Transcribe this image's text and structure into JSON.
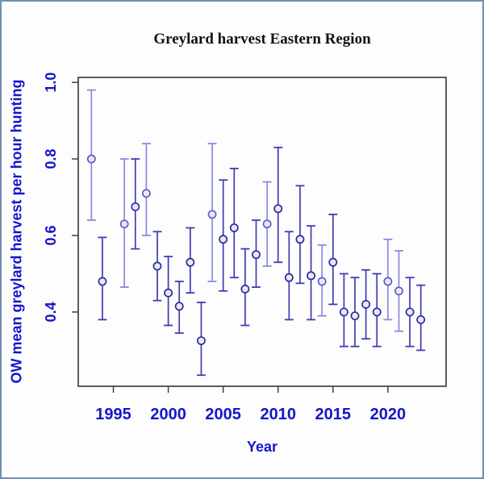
{
  "figure": {
    "border_color": "#6e8fb3",
    "background": "#fdfdfe"
  },
  "chart_data": {
    "type": "scatter",
    "subtype": "means-with-error-bars",
    "title": "Greylard harvest Eastern Region",
    "xlabel": "Year",
    "ylabel": "OW mean greylard harvest per hour hunting",
    "title_color": "#111111",
    "axis_text_color": "#1515cc",
    "frame_color": "#3f3f3f",
    "grid": false,
    "legend_position": "none",
    "xlim": [
      1991.8,
      2025.3
    ],
    "ylim": [
      0.206,
      1.013
    ],
    "x_ticks": [
      {
        "value": 1995,
        "label": "1995"
      },
      {
        "value": 2000,
        "label": "2000"
      },
      {
        "value": 2005,
        "label": "2005"
      },
      {
        "value": 2010,
        "label": "2010"
      },
      {
        "value": 2015,
        "label": "2015"
      },
      {
        "value": 2020,
        "label": "2020"
      }
    ],
    "y_ticks": [
      {
        "value": 0.4,
        "label": "0.4"
      },
      {
        "value": 0.6,
        "label": "0.6"
      },
      {
        "value": 0.8,
        "label": "0.8"
      },
      {
        "value": 1.0,
        "label": "1.0"
      }
    ],
    "marker": "open-circle",
    "error_bar_caps": true,
    "point_colors": {
      "light": "#8b89de",
      "dark": "#3d3db2"
    },
    "marker_ring_colors": {
      "light": "#5f5cc8",
      "dark": "#2c2c9a"
    },
    "marker_fill": "#e9e9f7",
    "series": [
      {
        "name": "OW mean greylard harvest per hour hunting",
        "points": [
          {
            "year": 1993,
            "mean": 0.8,
            "lo": 0.64,
            "hi": 0.98,
            "shade": "light"
          },
          {
            "year": 1994,
            "mean": 0.48,
            "lo": 0.38,
            "hi": 0.595,
            "shade": "dark"
          },
          {
            "year": 1996,
            "mean": 0.63,
            "lo": 0.465,
            "hi": 0.8,
            "shade": "light"
          },
          {
            "year": 1997,
            "mean": 0.675,
            "lo": 0.565,
            "hi": 0.8,
            "shade": "dark"
          },
          {
            "year": 1998,
            "mean": 0.71,
            "lo": 0.6,
            "hi": 0.84,
            "shade": "light"
          },
          {
            "year": 1999,
            "mean": 0.52,
            "lo": 0.43,
            "hi": 0.61,
            "shade": "dark"
          },
          {
            "year": 2000,
            "mean": 0.45,
            "lo": 0.365,
            "hi": 0.545,
            "shade": "dark"
          },
          {
            "year": 2001,
            "mean": 0.415,
            "lo": 0.345,
            "hi": 0.48,
            "shade": "dark"
          },
          {
            "year": 2002,
            "mean": 0.53,
            "lo": 0.45,
            "hi": 0.62,
            "shade": "dark"
          },
          {
            "year": 2003,
            "mean": 0.325,
            "lo": 0.235,
            "hi": 0.425,
            "shade": "dark"
          },
          {
            "year": 2004,
            "mean": 0.655,
            "lo": 0.48,
            "hi": 0.84,
            "shade": "light"
          },
          {
            "year": 2005,
            "mean": 0.59,
            "lo": 0.455,
            "hi": 0.745,
            "shade": "dark"
          },
          {
            "year": 2006,
            "mean": 0.62,
            "lo": 0.49,
            "hi": 0.775,
            "shade": "dark"
          },
          {
            "year": 2007,
            "mean": 0.46,
            "lo": 0.365,
            "hi": 0.565,
            "shade": "dark"
          },
          {
            "year": 2008,
            "mean": 0.55,
            "lo": 0.465,
            "hi": 0.64,
            "shade": "dark"
          },
          {
            "year": 2009,
            "mean": 0.63,
            "lo": 0.52,
            "hi": 0.74,
            "shade": "light"
          },
          {
            "year": 2010,
            "mean": 0.67,
            "lo": 0.53,
            "hi": 0.83,
            "shade": "dark"
          },
          {
            "year": 2011,
            "mean": 0.49,
            "lo": 0.38,
            "hi": 0.61,
            "shade": "dark"
          },
          {
            "year": 2012,
            "mean": 0.59,
            "lo": 0.475,
            "hi": 0.73,
            "shade": "dark"
          },
          {
            "year": 2013,
            "mean": 0.495,
            "lo": 0.38,
            "hi": 0.625,
            "shade": "dark"
          },
          {
            "year": 2014,
            "mean": 0.48,
            "lo": 0.39,
            "hi": 0.575,
            "shade": "light"
          },
          {
            "year": 2015,
            "mean": 0.53,
            "lo": 0.42,
            "hi": 0.655,
            "shade": "dark"
          },
          {
            "year": 2016,
            "mean": 0.4,
            "lo": 0.31,
            "hi": 0.5,
            "shade": "dark"
          },
          {
            "year": 2017,
            "mean": 0.39,
            "lo": 0.31,
            "hi": 0.49,
            "shade": "dark"
          },
          {
            "year": 2018,
            "mean": 0.42,
            "lo": 0.33,
            "hi": 0.51,
            "shade": "dark"
          },
          {
            "year": 2019,
            "mean": 0.4,
            "lo": 0.31,
            "hi": 0.5,
            "shade": "dark"
          },
          {
            "year": 2020,
            "mean": 0.48,
            "lo": 0.38,
            "hi": 0.59,
            "shade": "light"
          },
          {
            "year": 2021,
            "mean": 0.455,
            "lo": 0.35,
            "hi": 0.56,
            "shade": "light"
          },
          {
            "year": 2022,
            "mean": 0.4,
            "lo": 0.31,
            "hi": 0.49,
            "shade": "dark"
          },
          {
            "year": 2023,
            "mean": 0.38,
            "lo": 0.3,
            "hi": 0.47,
            "shade": "dark"
          }
        ]
      }
    ]
  }
}
